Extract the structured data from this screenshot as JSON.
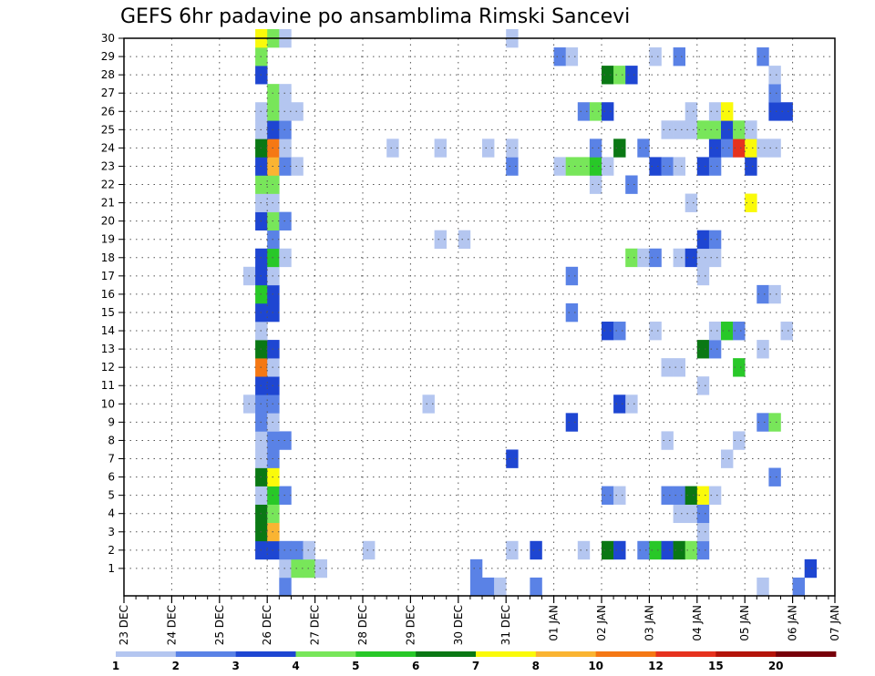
{
  "chart_data": {
    "type": "heatmap",
    "title": "GEFS 6hr padavine po ansamblima Rimski Sancevi",
    "xlabel": "",
    "ylabel": "",
    "x_tick_labels": [
      "23 DEC",
      "24 DEC",
      "25 DEC",
      "26 DEC",
      "27 DEC",
      "28 DEC",
      "29 DEC",
      "30 DEC",
      "31 DEC",
      "01 JAN",
      "02 JAN",
      "03 JAN",
      "04 JAN",
      "05 JAN",
      "06 JAN",
      "07 JAN"
    ],
    "y_tick_labels": [
      "1",
      "2",
      "3",
      "4",
      "5",
      "6",
      "7",
      "8",
      "9",
      "10",
      "11",
      "12",
      "13",
      "14",
      "15",
      "16",
      "17",
      "18",
      "19",
      "20",
      "21",
      "22",
      "23",
      "24",
      "25",
      "26",
      "27",
      "28",
      "29",
      "30"
    ],
    "x_step_hours": 6,
    "grid": true,
    "legend": {
      "placement": "bottom",
      "levels": [
        "1",
        "2",
        "3",
        "4",
        "5",
        "6",
        "7",
        "8",
        "10",
        "12",
        "15",
        "20"
      ],
      "colors": [
        "#b4c6f0",
        "#5a82e6",
        "#1e46d2",
        "#78e65a",
        "#28c828",
        "#0a7814",
        "#fafa0a",
        "#fab432",
        "#f57814",
        "#e6321e",
        "#b4140a",
        "#78000a"
      ]
    },
    "cells": [
      [
        0,
        13,
        1
      ],
      [
        0,
        29,
        1
      ],
      [
        0,
        30,
        1
      ],
      [
        0,
        31,
        0
      ],
      [
        0,
        34,
        1
      ],
      [
        0,
        53,
        0
      ],
      [
        0,
        56,
        1
      ],
      [
        1,
        13,
        0
      ],
      [
        1,
        14,
        3
      ],
      [
        1,
        15,
        3
      ],
      [
        1,
        16,
        0
      ],
      [
        1,
        29,
        1
      ],
      [
        1,
        57,
        2
      ],
      [
        2,
        11,
        2
      ],
      [
        2,
        12,
        2
      ],
      [
        2,
        13,
        1
      ],
      [
        2,
        14,
        1
      ],
      [
        2,
        15,
        0
      ],
      [
        2,
        20,
        0
      ],
      [
        2,
        32,
        0
      ],
      [
        2,
        34,
        2
      ],
      [
        2,
        38,
        0
      ],
      [
        2,
        40,
        5
      ],
      [
        2,
        41,
        2
      ],
      [
        2,
        43,
        1
      ],
      [
        2,
        44,
        4
      ],
      [
        2,
        45,
        2
      ],
      [
        2,
        46,
        5
      ],
      [
        2,
        47,
        3
      ],
      [
        2,
        48,
        1
      ],
      [
        3,
        11,
        5
      ],
      [
        3,
        12,
        7
      ],
      [
        3,
        48,
        0
      ],
      [
        4,
        11,
        5
      ],
      [
        4,
        12,
        3
      ],
      [
        4,
        46,
        0
      ],
      [
        4,
        47,
        0
      ],
      [
        4,
        48,
        1
      ],
      [
        5,
        11,
        0
      ],
      [
        5,
        12,
        4
      ],
      [
        5,
        13,
        1
      ],
      [
        5,
        40,
        1
      ],
      [
        5,
        41,
        0
      ],
      [
        5,
        45,
        1
      ],
      [
        5,
        46,
        1
      ],
      [
        5,
        47,
        5
      ],
      [
        5,
        48,
        6
      ],
      [
        5,
        49,
        0
      ],
      [
        6,
        11,
        5
      ],
      [
        6,
        12,
        6
      ],
      [
        6,
        54,
        1
      ],
      [
        7,
        11,
        0
      ],
      [
        7,
        12,
        1
      ],
      [
        7,
        32,
        2
      ],
      [
        7,
        50,
        0
      ],
      [
        8,
        11,
        0
      ],
      [
        8,
        12,
        1
      ],
      [
        8,
        13,
        1
      ],
      [
        8,
        45,
        0
      ],
      [
        8,
        51,
        0
      ],
      [
        9,
        11,
        1
      ],
      [
        9,
        12,
        0
      ],
      [
        9,
        37,
        2
      ],
      [
        9,
        53,
        1
      ],
      [
        9,
        54,
        3
      ],
      [
        10,
        10,
        0
      ],
      [
        10,
        11,
        1
      ],
      [
        10,
        12,
        1
      ],
      [
        10,
        25,
        0
      ],
      [
        10,
        41,
        2
      ],
      [
        10,
        42,
        0
      ],
      [
        11,
        11,
        2
      ],
      [
        11,
        12,
        2
      ],
      [
        11,
        48,
        0
      ],
      [
        12,
        11,
        8
      ],
      [
        12,
        12,
        0
      ],
      [
        12,
        45,
        0
      ],
      [
        12,
        46,
        0
      ],
      [
        12,
        51,
        4
      ],
      [
        13,
        11,
        5
      ],
      [
        13,
        12,
        2
      ],
      [
        13,
        48,
        5
      ],
      [
        13,
        49,
        1
      ],
      [
        13,
        53,
        0
      ],
      [
        14,
        11,
        0
      ],
      [
        14,
        40,
        2
      ],
      [
        14,
        41,
        1
      ],
      [
        14,
        44,
        0
      ],
      [
        14,
        49,
        0
      ],
      [
        14,
        50,
        4
      ],
      [
        14,
        51,
        1
      ],
      [
        14,
        55,
        0
      ],
      [
        15,
        11,
        2
      ],
      [
        15,
        12,
        2
      ],
      [
        15,
        37,
        1
      ],
      [
        16,
        11,
        4
      ],
      [
        16,
        12,
        2
      ],
      [
        16,
        53,
        1
      ],
      [
        16,
        54,
        0
      ],
      [
        17,
        10,
        0
      ],
      [
        17,
        11,
        2
      ],
      [
        17,
        12,
        0
      ],
      [
        17,
        37,
        1
      ],
      [
        17,
        48,
        0
      ],
      [
        18,
        11,
        2
      ],
      [
        18,
        12,
        4
      ],
      [
        18,
        13,
        0
      ],
      [
        18,
        42,
        3
      ],
      [
        18,
        43,
        0
      ],
      [
        18,
        44,
        1
      ],
      [
        18,
        46,
        0
      ],
      [
        18,
        47,
        2
      ],
      [
        18,
        48,
        0
      ],
      [
        18,
        49,
        0
      ],
      [
        19,
        12,
        1
      ],
      [
        19,
        26,
        0
      ],
      [
        19,
        28,
        0
      ],
      [
        19,
        48,
        2
      ],
      [
        19,
        49,
        1
      ],
      [
        20,
        11,
        2
      ],
      [
        20,
        12,
        3
      ],
      [
        20,
        13,
        1
      ],
      [
        21,
        11,
        0
      ],
      [
        21,
        12,
        0
      ],
      [
        21,
        47,
        0
      ],
      [
        21,
        52,
        6
      ],
      [
        22,
        11,
        3
      ],
      [
        22,
        12,
        3
      ],
      [
        22,
        39,
        0
      ],
      [
        22,
        42,
        1
      ],
      [
        23,
        11,
        2
      ],
      [
        23,
        12,
        7
      ],
      [
        23,
        13,
        1
      ],
      [
        23,
        14,
        0
      ],
      [
        23,
        32,
        1
      ],
      [
        23,
        36,
        0
      ],
      [
        23,
        37,
        3
      ],
      [
        23,
        38,
        3
      ],
      [
        23,
        39,
        4
      ],
      [
        23,
        40,
        0
      ],
      [
        23,
        44,
        2
      ],
      [
        23,
        45,
        1
      ],
      [
        23,
        46,
        0
      ],
      [
        23,
        48,
        2
      ],
      [
        23,
        49,
        1
      ],
      [
        23,
        52,
        2
      ],
      [
        24,
        11,
        5
      ],
      [
        24,
        12,
        8
      ],
      [
        24,
        13,
        0
      ],
      [
        24,
        22,
        0
      ],
      [
        24,
        26,
        0
      ],
      [
        24,
        30,
        0
      ],
      [
        24,
        32,
        0
      ],
      [
        24,
        39,
        1
      ],
      [
        24,
        41,
        5
      ],
      [
        24,
        43,
        1
      ],
      [
        24,
        49,
        2
      ],
      [
        24,
        50,
        1
      ],
      [
        24,
        51,
        9
      ],
      [
        24,
        52,
        6
      ],
      [
        24,
        53,
        0
      ],
      [
        24,
        54,
        0
      ],
      [
        25,
        11,
        0
      ],
      [
        25,
        12,
        2
      ],
      [
        25,
        13,
        1
      ],
      [
        25,
        45,
        0
      ],
      [
        25,
        46,
        0
      ],
      [
        25,
        47,
        0
      ],
      [
        25,
        48,
        3
      ],
      [
        25,
        49,
        3
      ],
      [
        25,
        50,
        2
      ],
      [
        25,
        51,
        3
      ],
      [
        25,
        52,
        0
      ],
      [
        26,
        11,
        0
      ],
      [
        26,
        12,
        3
      ],
      [
        26,
        13,
        0
      ],
      [
        26,
        14,
        0
      ],
      [
        26,
        38,
        1
      ],
      [
        26,
        39,
        3
      ],
      [
        26,
        40,
        2
      ],
      [
        26,
        47,
        0
      ],
      [
        26,
        49,
        0
      ],
      [
        26,
        50,
        6
      ],
      [
        26,
        54,
        2
      ],
      [
        26,
        55,
        2
      ],
      [
        27,
        12,
        3
      ],
      [
        27,
        13,
        0
      ],
      [
        27,
        54,
        1
      ],
      [
        28,
        11,
        2
      ],
      [
        28,
        40,
        5
      ],
      [
        28,
        41,
        3
      ],
      [
        28,
        42,
        2
      ],
      [
        28,
        54,
        0
      ],
      [
        29,
        11,
        3
      ],
      [
        29,
        36,
        1
      ],
      [
        29,
        37,
        0
      ],
      [
        29,
        44,
        0
      ],
      [
        29,
        46,
        1
      ],
      [
        29,
        53,
        1
      ],
      [
        30,
        11,
        6
      ],
      [
        30,
        12,
        3
      ],
      [
        30,
        13,
        0
      ],
      [
        30,
        32,
        0
      ]
    ]
  }
}
